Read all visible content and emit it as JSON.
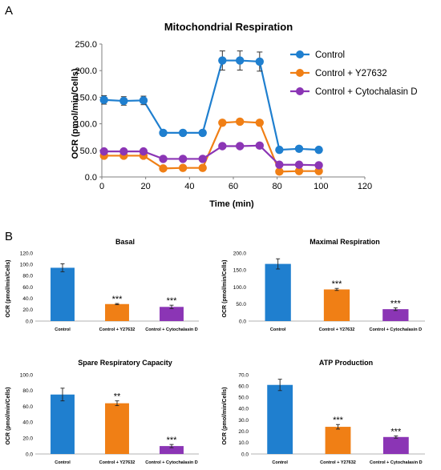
{
  "panel_a_label": "A",
  "panel_b_label": "B",
  "colors": {
    "control": "#1f7fcf",
    "y27632": "#f07f15",
    "cytochalasin": "#8b35b5",
    "axis": "#7f7f7f",
    "text": "#000000"
  },
  "chart_data": [
    {
      "type": "line",
      "title": "Mitochondrial Respiration",
      "xlabel": "Time (min)",
      "ylabel": "OCR (pmol/min/Cells)",
      "xlim": [
        0,
        120
      ],
      "ylim": [
        0,
        250
      ],
      "xticks": [
        "0",
        "20",
        "40",
        "60",
        "80",
        "100",
        "120"
      ],
      "yticks": [
        "0.0",
        "50.0",
        "100.0",
        "150.0",
        "200.0",
        "250.0"
      ],
      "legend_position": "top-right",
      "grid": false,
      "series": [
        {
          "name": "Control",
          "color_key": "control",
          "x": [
            1,
            10,
            19,
            28,
            37,
            46,
            55,
            63,
            72,
            81,
            90,
            99
          ],
          "y": [
            145,
            143,
            144,
            83,
            83,
            83,
            219,
            219,
            217,
            51,
            53,
            51
          ],
          "err": [
            8,
            8,
            8,
            5,
            5,
            5,
            18,
            18,
            18,
            3,
            3,
            3
          ]
        },
        {
          "name": "Control + Y27632",
          "color_key": "y27632",
          "x": [
            1,
            10,
            19,
            28,
            37,
            46,
            55,
            63,
            72,
            81,
            90,
            99
          ],
          "y": [
            40,
            40,
            40,
            16,
            17,
            17,
            102,
            104,
            102,
            10,
            11,
            11
          ],
          "err": [
            0,
            0,
            0,
            0,
            0,
            0,
            0,
            0,
            0,
            0,
            0,
            0
          ]
        },
        {
          "name": "Control + Cytochalasin D",
          "color_key": "cytochalasin",
          "x": [
            1,
            10,
            19,
            28,
            37,
            46,
            55,
            63,
            72,
            81,
            90,
            99
          ],
          "y": [
            48,
            48,
            48,
            34,
            34,
            34,
            58,
            58,
            59,
            23,
            23,
            22
          ],
          "err": [
            0,
            0,
            0,
            0,
            0,
            0,
            0,
            0,
            0,
            0,
            0,
            0
          ]
        }
      ]
    },
    {
      "type": "bar",
      "title": "Basal",
      "ylabel": "OCR (pmol/min/Cells)",
      "ylim": [
        0,
        120
      ],
      "yticks": [
        "0.0",
        "20.0",
        "40.0",
        "60.0",
        "80.0",
        "100.0",
        "120.0"
      ],
      "categories": [
        "Control",
        "Control + Y27632",
        "Control + Cytochalasin D"
      ],
      "values": [
        94,
        30,
        25
      ],
      "errors": [
        7,
        1,
        3
      ],
      "significance": [
        "",
        "***",
        "***"
      ]
    },
    {
      "type": "bar",
      "title": "Maximal Respiration",
      "ylabel": "OCR (pmol/min/Cells)",
      "ylim": [
        0,
        200
      ],
      "yticks": [
        "0.0",
        "50.0",
        "100.0",
        "150.0",
        "200.0"
      ],
      "categories": [
        "Control",
        "Control + Y27632",
        "Control + Cytochalasin D"
      ],
      "values": [
        168,
        93,
        35
      ],
      "errors": [
        15,
        3,
        4
      ],
      "significance": [
        "",
        "***",
        "***"
      ]
    },
    {
      "type": "bar",
      "title": "Spare Respiratory Capacity",
      "ylabel": "OCR (pmol/min/Cells)",
      "ylim": [
        0,
        100
      ],
      "yticks": [
        "0.0",
        "20.0",
        "40.0",
        "60.0",
        "80.0",
        "100.0"
      ],
      "categories": [
        "Control",
        "Control + Y27632",
        "Control + Cytochalasin D"
      ],
      "values": [
        75,
        64,
        10
      ],
      "errors": [
        8,
        3,
        2
      ],
      "significance": [
        "",
        "**",
        "***"
      ]
    },
    {
      "type": "bar",
      "title": "ATP Production",
      "ylabel": "OCR (pmol/min/Cells)",
      "ylim": [
        0,
        70
      ],
      "yticks": [
        "0.0",
        "10.0",
        "20.0",
        "30.0",
        "40.0",
        "50.0",
        "60.0",
        "70.0"
      ],
      "categories": [
        "Control",
        "Control + Y27632",
        "Control + Cytochalasin D"
      ],
      "values": [
        61,
        24,
        15
      ],
      "errors": [
        5,
        2,
        1
      ],
      "significance": [
        "",
        "***",
        "***"
      ]
    }
  ]
}
